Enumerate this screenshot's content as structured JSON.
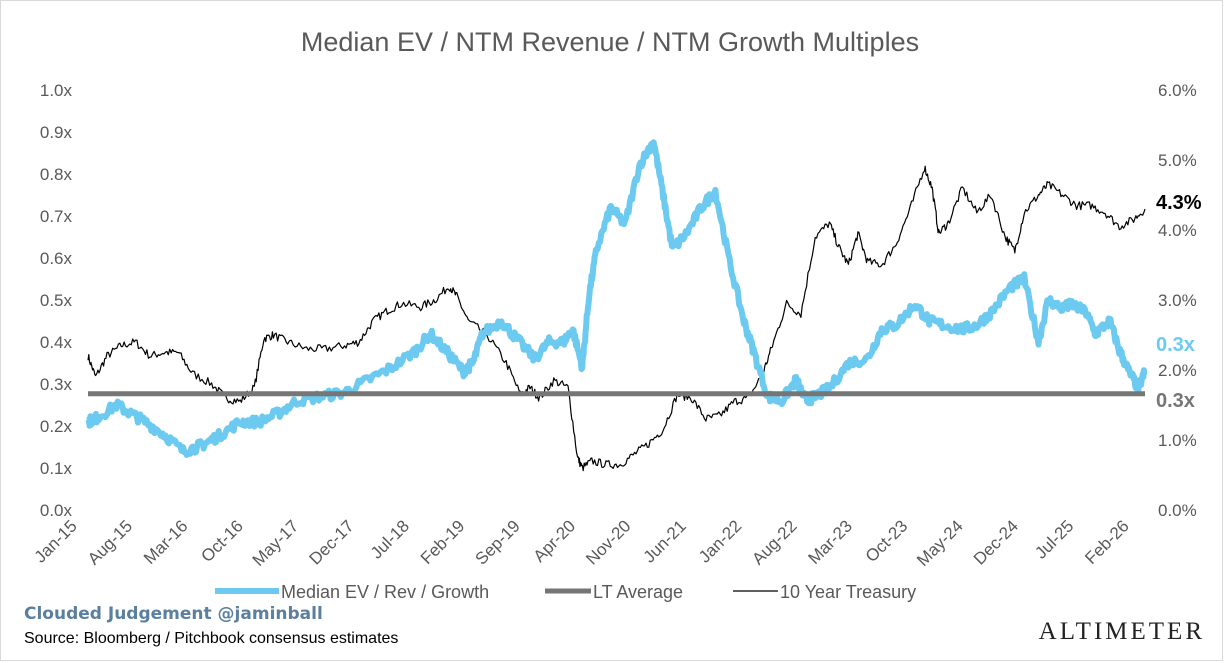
{
  "chart_data": {
    "type": "line",
    "title": "Median EV / NTM Revenue / NTM Growth Multiples",
    "x_tick_labels": [
      "Jan-15",
      "Aug-15",
      "Mar-16",
      "Oct-16",
      "May-17",
      "Dec-17",
      "Jul-18",
      "Feb-19",
      "Sep-19",
      "Apr-20",
      "Nov-20",
      "Jun-21",
      "Jan-22",
      "Aug-22",
      "Mar-23",
      "Oct-23",
      "May-24",
      "Dec-24",
      "Jul-25",
      "Feb-26"
    ],
    "y_left": {
      "range": [
        0.0,
        1.0
      ],
      "ticks": [
        "0.0x",
        "0.1x",
        "0.2x",
        "0.3x",
        "0.4x",
        "0.5x",
        "0.6x",
        "0.7x",
        "0.8x",
        "0.9x",
        "1.0x"
      ]
    },
    "y_right": {
      "range": [
        0.0,
        6.0
      ],
      "ticks": [
        "0.0%",
        "1.0%",
        "2.0%",
        "3.0%",
        "4.0%",
        "5.0%",
        "6.0%"
      ]
    },
    "grid": false,
    "legend_position": "bottom",
    "series": [
      {
        "name": "Median EV / Rev / Growth",
        "axis": "left",
        "color": "#6ccaf0",
        "x": [
          2015.0,
          2015.1,
          2015.3,
          2015.45,
          2015.6,
          2015.8,
          2016.0,
          2016.15,
          2016.25,
          2016.4,
          2016.6,
          2016.8,
          2017.0,
          2017.2,
          2017.45,
          2017.7,
          2017.95,
          2018.2,
          2018.45,
          2018.6,
          2018.8,
          2018.95,
          2019.05,
          2019.15,
          2019.35,
          2019.5,
          2019.7,
          2019.85,
          2020.0,
          2020.1,
          2020.2,
          2020.27,
          2020.35,
          2020.5,
          2020.65,
          2020.8,
          2020.95,
          2021.05,
          2021.15,
          2021.3,
          2021.45,
          2021.6,
          2021.75,
          2021.9,
          2022.0,
          2022.15,
          2022.3,
          2022.45,
          2022.55,
          2022.65,
          2022.8,
          2023.0,
          2023.2,
          2023.35,
          2023.5,
          2023.7,
          2023.85,
          2024.0,
          2024.2,
          2024.35,
          2024.5,
          2024.7,
          2024.85,
          2025.0,
          2025.1,
          2025.25,
          2025.35,
          2025.5,
          2025.6,
          2025.75,
          2025.85,
          2025.95,
          2026.05,
          2026.12
        ],
        "values": [
          0.21,
          0.22,
          0.25,
          0.23,
          0.21,
          0.18,
          0.14,
          0.15,
          0.16,
          0.18,
          0.21,
          0.21,
          0.23,
          0.26,
          0.27,
          0.28,
          0.31,
          0.34,
          0.38,
          0.42,
          0.37,
          0.33,
          0.35,
          0.42,
          0.45,
          0.41,
          0.36,
          0.4,
          0.4,
          0.43,
          0.34,
          0.51,
          0.62,
          0.72,
          0.68,
          0.82,
          0.88,
          0.75,
          0.62,
          0.66,
          0.72,
          0.76,
          0.59,
          0.45,
          0.38,
          0.27,
          0.26,
          0.31,
          0.26,
          0.27,
          0.29,
          0.35,
          0.36,
          0.43,
          0.44,
          0.49,
          0.45,
          0.44,
          0.43,
          0.44,
          0.47,
          0.53,
          0.55,
          0.4,
          0.5,
          0.48,
          0.49,
          0.47,
          0.42,
          0.45,
          0.38,
          0.33,
          0.29,
          0.33
        ]
      },
      {
        "name": "LT Average",
        "axis": "left",
        "color": "#767676",
        "x": [
          2015.0,
          2026.12
        ],
        "values": [
          0.277,
          0.277
        ]
      },
      {
        "name": "10 Year Treasury",
        "axis": "right",
        "color": "#000000",
        "x": [
          2015.0,
          2015.08,
          2015.2,
          2015.35,
          2015.5,
          2015.65,
          2015.8,
          2015.95,
          2016.1,
          2016.3,
          2016.45,
          2016.6,
          2016.75,
          2016.85,
          2016.95,
          2017.1,
          2017.3,
          2017.5,
          2017.7,
          2017.85,
          2018.0,
          2018.15,
          2018.3,
          2018.5,
          2018.65,
          2018.8,
          2018.88,
          2019.0,
          2019.2,
          2019.4,
          2019.55,
          2019.65,
          2019.75,
          2019.9,
          2020.05,
          2020.15,
          2020.2,
          2020.3,
          2020.45,
          2020.6,
          2020.75,
          2020.9,
          2021.05,
          2021.2,
          2021.35,
          2021.5,
          2021.65,
          2021.8,
          2021.95,
          2022.1,
          2022.2,
          2022.35,
          2022.5,
          2022.65,
          2022.8,
          2022.9,
          2023.0,
          2023.1,
          2023.2,
          2023.35,
          2023.5,
          2023.65,
          2023.8,
          2023.88,
          2023.95,
          2024.05,
          2024.2,
          2024.35,
          2024.5,
          2024.65,
          2024.75,
          2024.85,
          2025.0,
          2025.1,
          2025.25,
          2025.4,
          2025.55,
          2025.7,
          2025.85,
          2026.0,
          2026.12
        ],
        "values": [
          2.2,
          1.9,
          2.2,
          2.35,
          2.4,
          2.2,
          2.25,
          2.25,
          1.95,
          1.8,
          1.6,
          1.55,
          1.75,
          2.45,
          2.5,
          2.4,
          2.3,
          2.3,
          2.35,
          2.4,
          2.7,
          2.85,
          2.95,
          2.9,
          3.0,
          3.2,
          3.05,
          2.7,
          2.5,
          2.1,
          1.65,
          1.75,
          1.6,
          1.85,
          1.75,
          0.75,
          0.6,
          0.7,
          0.65,
          0.65,
          0.8,
          0.95,
          1.15,
          1.65,
          1.6,
          1.3,
          1.35,
          1.55,
          1.6,
          1.95,
          2.35,
          2.95,
          2.8,
          3.9,
          4.1,
          3.75,
          3.5,
          3.95,
          3.55,
          3.5,
          3.8,
          4.3,
          4.9,
          4.6,
          3.95,
          4.1,
          4.6,
          4.25,
          4.5,
          3.9,
          3.7,
          4.25,
          4.5,
          4.65,
          4.5,
          4.35,
          4.35,
          4.25,
          4.05,
          4.15,
          4.3
        ]
      }
    ],
    "end_labels": [
      {
        "text": "4.3%",
        "color": "#000000"
      },
      {
        "text": "0.3x",
        "color": "#6ccaf0"
      },
      {
        "text": "0.3x",
        "color": "#767676"
      }
    ]
  },
  "footer": {
    "brand": "Clouded Judgement @jaminball",
    "source": "Source: Bloomberg / Pitchbook consensus estimates",
    "logo": "ALTIMETER"
  }
}
